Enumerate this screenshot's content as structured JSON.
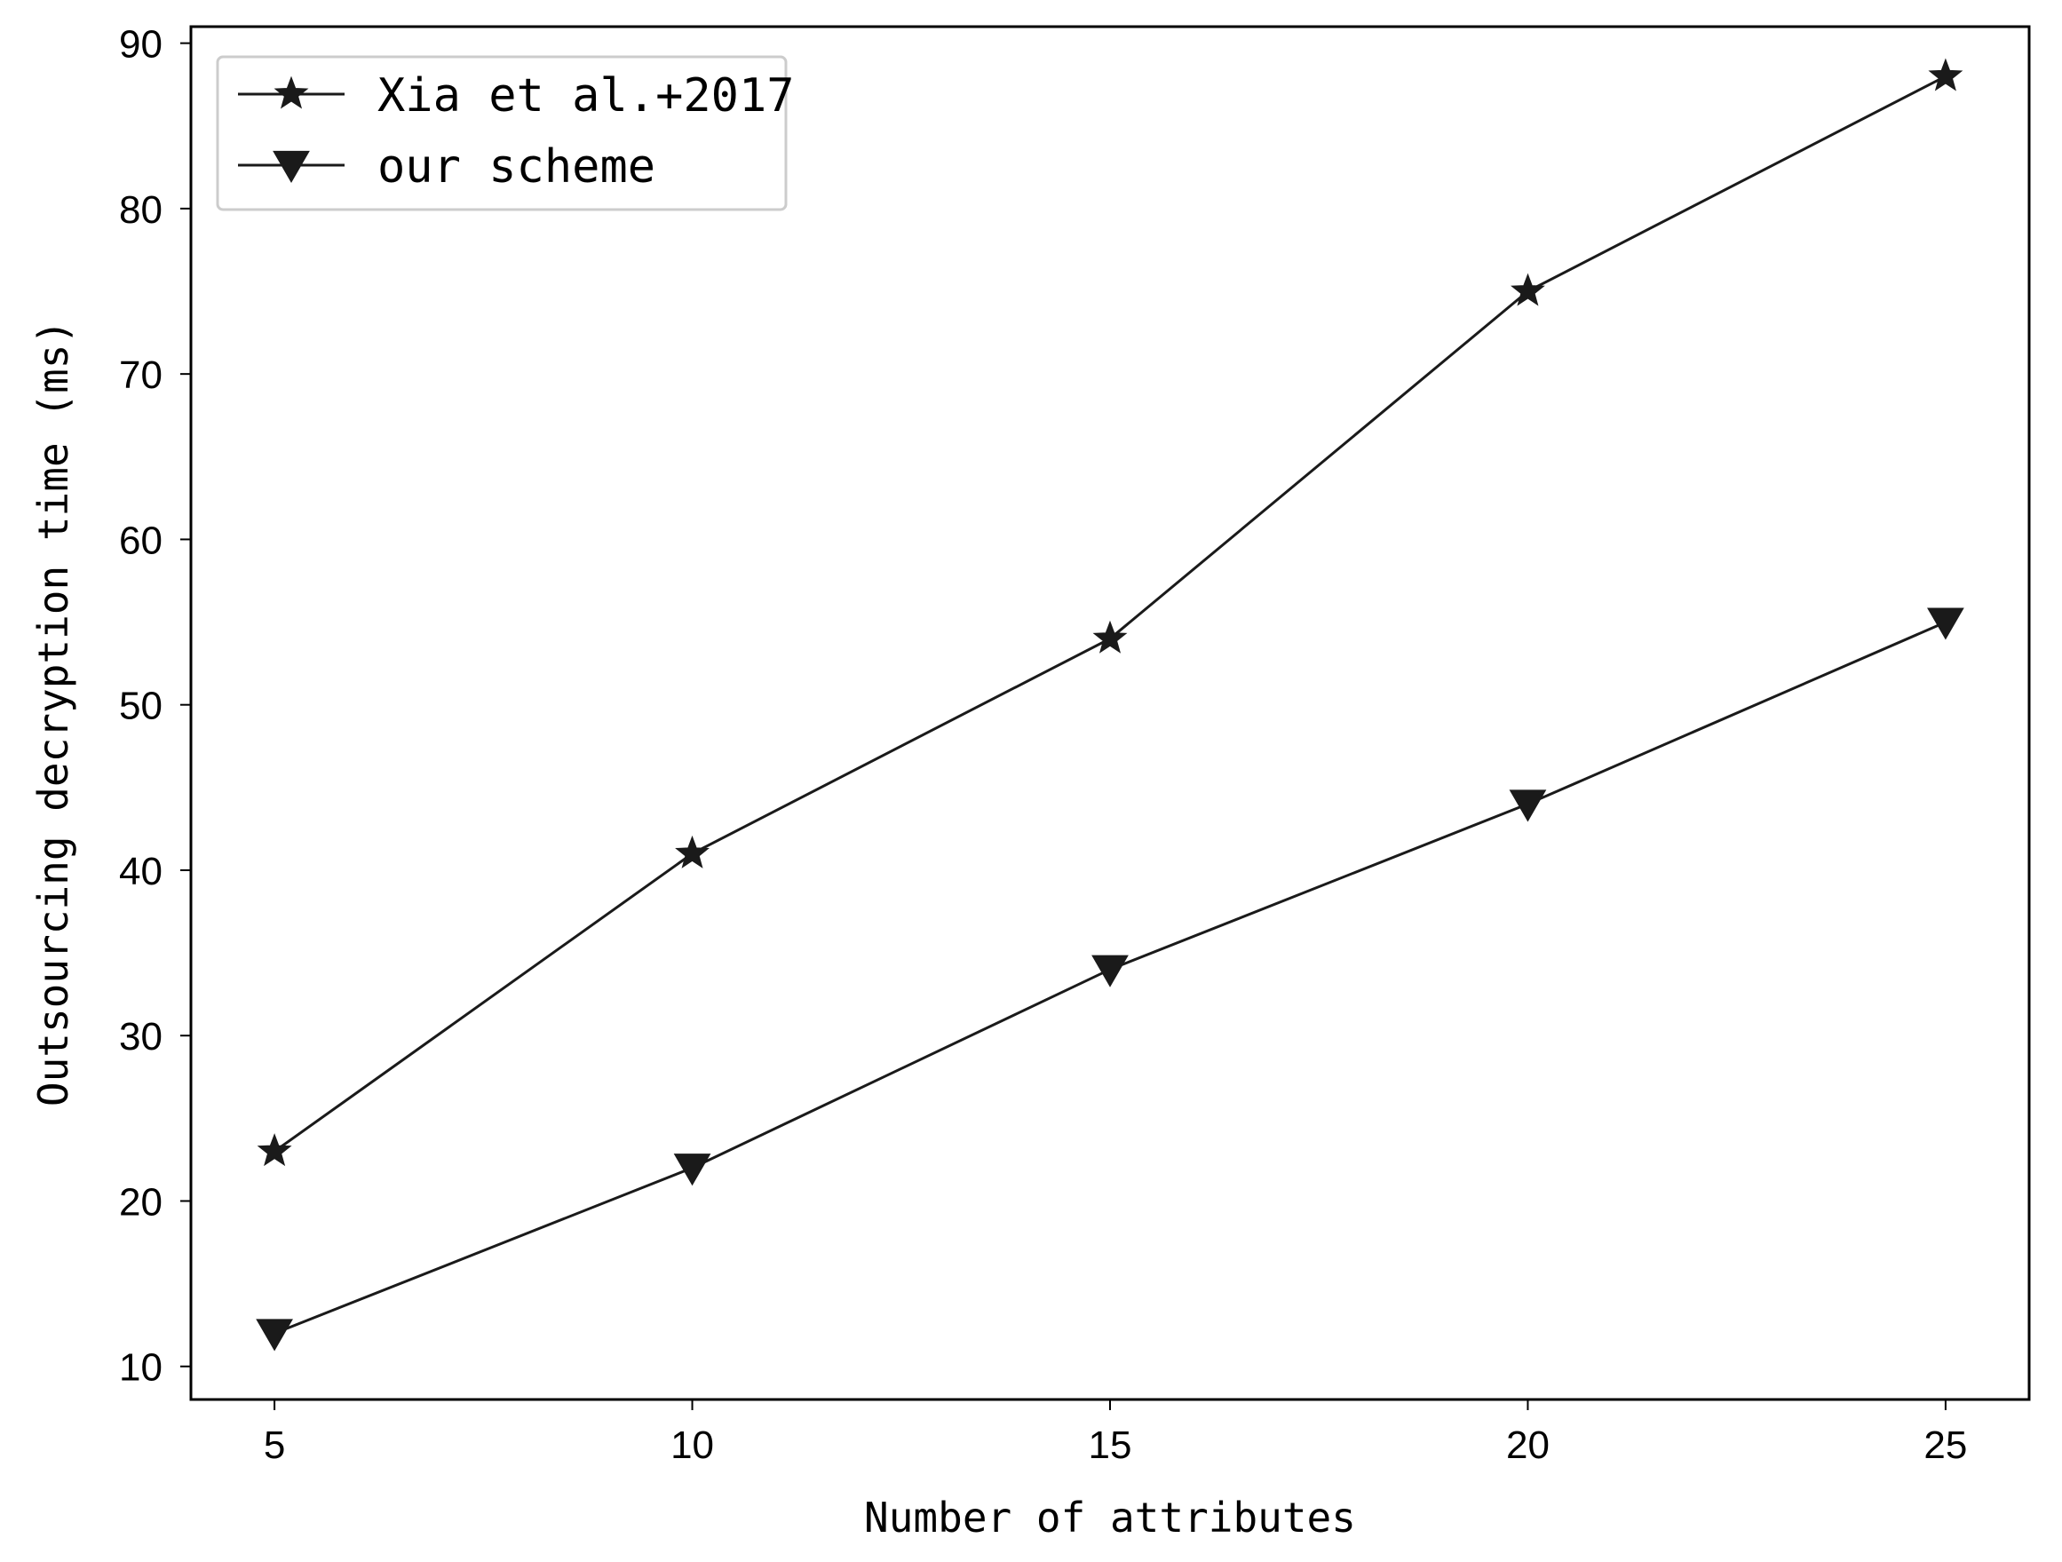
{
  "chart_data": {
    "type": "line",
    "title": "",
    "xlabel": "Number of attributes",
    "ylabel": "Outsourcing decryption time (ms)",
    "x": [
      5,
      10,
      15,
      20,
      25
    ],
    "xlim": [
      4,
      26
    ],
    "ylim": [
      8,
      91
    ],
    "xticks": [
      5,
      10,
      15,
      20,
      25
    ],
    "yticks": [
      10,
      20,
      30,
      40,
      50,
      60,
      70,
      80,
      90
    ],
    "grid": false,
    "legend_position": "top-left",
    "series": [
      {
        "name": "Xia et al.+2017",
        "marker": "star",
        "color": "#1a1a1a",
        "values": [
          23,
          41,
          54,
          75,
          88
        ]
      },
      {
        "name": "our scheme",
        "marker": "triangle-down",
        "color": "#1a1a1a",
        "values": [
          12,
          22,
          34,
          44,
          55
        ]
      }
    ]
  }
}
